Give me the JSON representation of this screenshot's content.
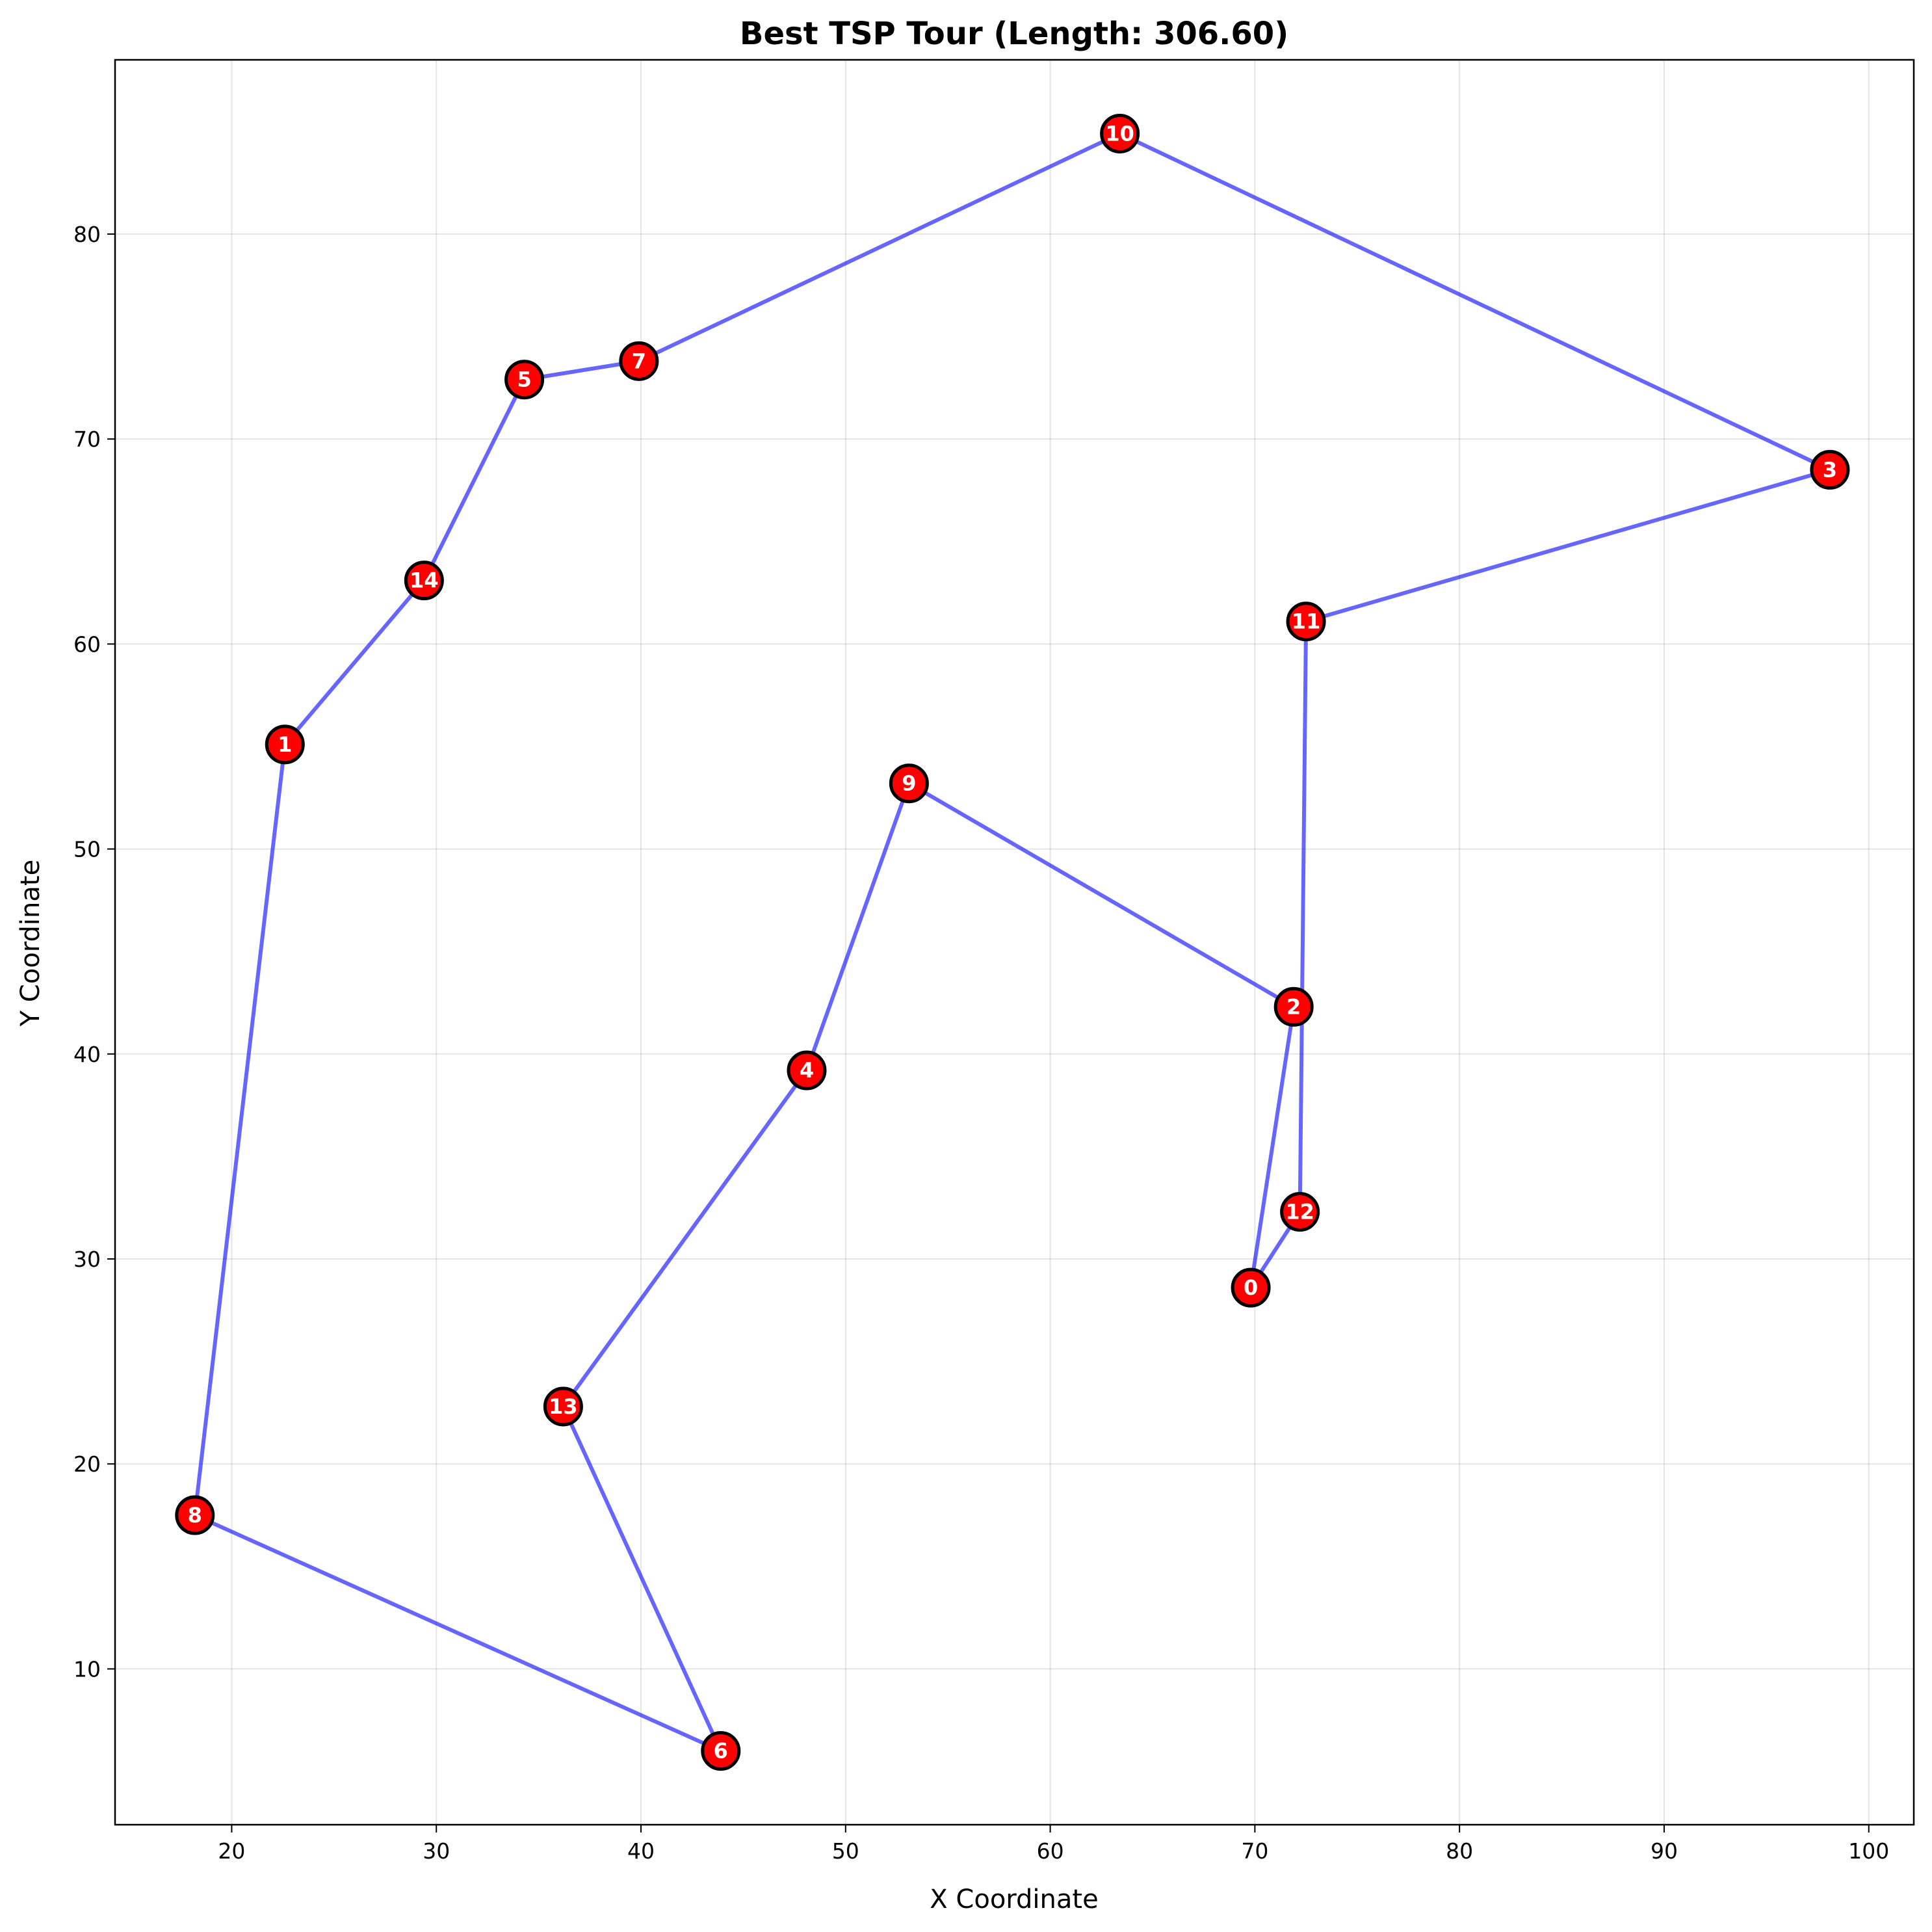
{
  "chart_data": {
    "type": "scatter",
    "title": "Best TSP Tour (Length: 306.60)",
    "xlabel": "X Coordinate",
    "ylabel": "Y Coordinate",
    "xlim": [
      14.3,
      102.2
    ],
    "ylim": [
      2.4,
      88.5
    ],
    "xticks": [
      20,
      30,
      40,
      50,
      60,
      70,
      80,
      90,
      100
    ],
    "yticks": [
      10,
      20,
      30,
      40,
      50,
      60,
      70,
      80
    ],
    "grid": true,
    "line_color": "#0000ff",
    "node_fill": "#ff0000",
    "node_edge": "#000000",
    "label_color": "#ffffff",
    "points": [
      {
        "id": "0",
        "x": 69.8,
        "y": 28.6
      },
      {
        "id": "1",
        "x": 22.6,
        "y": 55.1
      },
      {
        "id": "2",
        "x": 71.9,
        "y": 42.3
      },
      {
        "id": "3",
        "x": 98.1,
        "y": 68.5
      },
      {
        "id": "4",
        "x": 48.1,
        "y": 39.2
      },
      {
        "id": "5",
        "x": 34.3,
        "y": 72.9
      },
      {
        "id": "6",
        "x": 43.9,
        "y": 6.0
      },
      {
        "id": "7",
        "x": 39.9,
        "y": 73.8
      },
      {
        "id": "8",
        "x": 18.2,
        "y": 17.5
      },
      {
        "id": "9",
        "x": 53.1,
        "y": 53.2
      },
      {
        "id": "10",
        "x": 63.4,
        "y": 84.9
      },
      {
        "id": "11",
        "x": 72.5,
        "y": 61.1
      },
      {
        "id": "12",
        "x": 72.2,
        "y": 32.3
      },
      {
        "id": "13",
        "x": 36.2,
        "y": 22.8
      },
      {
        "id": "14",
        "x": 29.4,
        "y": 63.1
      }
    ],
    "tour": [
      "0",
      "2",
      "9",
      "4",
      "13",
      "6",
      "8",
      "1",
      "14",
      "5",
      "7",
      "10",
      "3",
      "11",
      "12",
      "0"
    ]
  }
}
